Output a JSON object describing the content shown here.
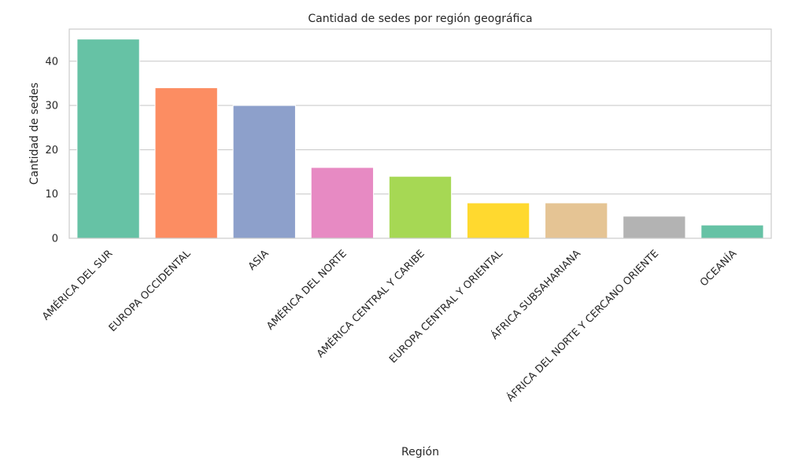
{
  "chart_data": {
    "type": "bar",
    "title": "Cantidad de sedes por región geográfica",
    "xlabel": "Región",
    "ylabel": "Cantidad de sedes",
    "categories": [
      "AMÉRICA DEL SUR",
      "EUROPA OCCIDENTAL",
      "ASIA",
      "AMÉRICA DEL NORTE",
      "AMÉRICA CENTRAL Y CARIBE",
      "EUROPA CENTRAL Y ORIENTAL",
      "ÁFRICA SUBSAHARIANA",
      "ÁFRICA DEL NORTE Y CERCANO ORIENTE",
      "OCEANÍA"
    ],
    "values": [
      45,
      34,
      30,
      16,
      14,
      8,
      8,
      5,
      3
    ],
    "colors": [
      "#66c2a5",
      "#fc8d62",
      "#8da0cb",
      "#e78ac3",
      "#a6d854",
      "#ffd92f",
      "#e5c494",
      "#b3b3b3",
      "#66c2a5"
    ],
    "yticks": [
      0,
      10,
      20,
      30,
      40
    ],
    "ylim": [
      0,
      47.25
    ],
    "grid": true,
    "legend": "none"
  }
}
